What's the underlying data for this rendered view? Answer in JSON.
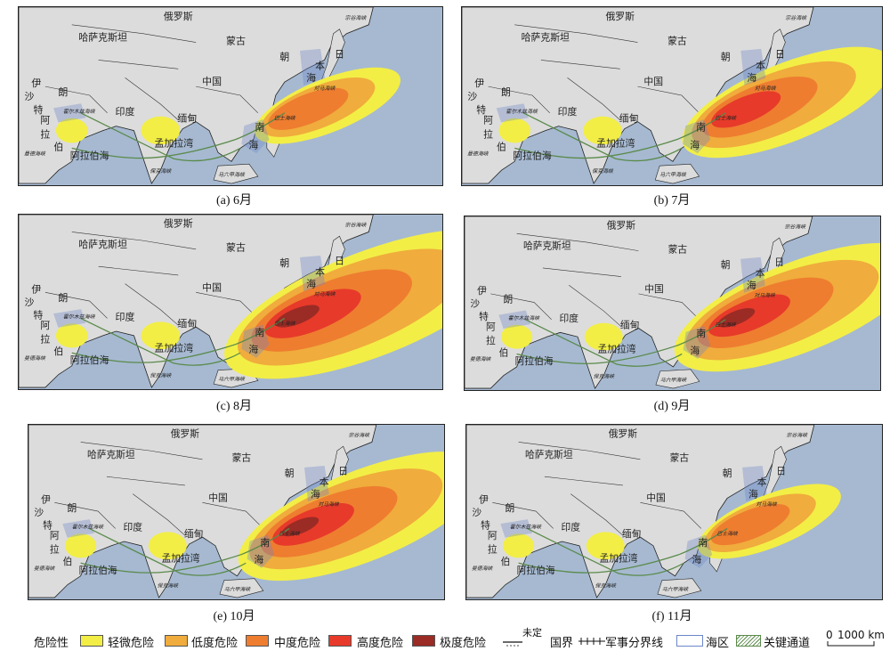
{
  "panels": [
    {
      "caption": "(a) 6月",
      "intensity": 1
    },
    {
      "caption": "(b) 7月",
      "intensity": 2
    },
    {
      "caption": "(c) 8月",
      "intensity": 4
    },
    {
      "caption": "(d) 9月",
      "intensity": 3
    },
    {
      "caption": "(e) 10月",
      "intensity": 3
    },
    {
      "caption": "(f) 11月",
      "intensity": 1
    }
  ],
  "map_labels": {
    "russia": "俄罗斯",
    "kazakhstan": "哈萨克斯坦",
    "mongolia": "蒙古",
    "china": "中国",
    "india": "印度",
    "bangladesh": "孟加拉湾",
    "arabian_sea": "阿拉伯海",
    "iran": "伊",
    "iran2": "朗",
    "saudi1": "沙",
    "saudi2": "特",
    "saudi3": "阿",
    "saudi4": "拉",
    "saudi5": "伯",
    "myanmar": "缅甸",
    "south_china_sea_1": "南",
    "south_china_sea_2": "海",
    "japan": "日",
    "japan2": "本",
    "japan_sea": "海",
    "korea": "朝",
    "strait_hormuz": "霍尔木兹海峡",
    "strait_mandeb": "曼德海峡",
    "strait_malacca": "马六甲海峡",
    "strait_palk": "保克海峡",
    "strait_tsushima": "对马海峡",
    "strait_bashi": "巴士海峡",
    "strait_soya": "宗谷海峡",
    "strait_karimata": "卡里马塔海峡"
  },
  "legend": {
    "title": "危险性",
    "levels": [
      {
        "label": "轻微危险",
        "color": "#f2ee46"
      },
      {
        "label": "低度危险",
        "color": "#f0ac3c"
      },
      {
        "label": "中度危险",
        "color": "#ee7d30"
      },
      {
        "label": "高度危险",
        "color": "#e73a2a"
      },
      {
        "label": "极度危险",
        "color": "#9b2b25"
      }
    ],
    "undetermined": "未定",
    "border": "国界",
    "military": "军事分界线",
    "sea_area": "海区",
    "corridor": "关键通道",
    "scale_zero": "0",
    "scale_label": "1000 km"
  },
  "colors": {
    "ocean": "#a6b9d1",
    "land": "#dcdcdc",
    "sea_zone": "#6b86c8",
    "corridor": "#5a8a4a"
  }
}
